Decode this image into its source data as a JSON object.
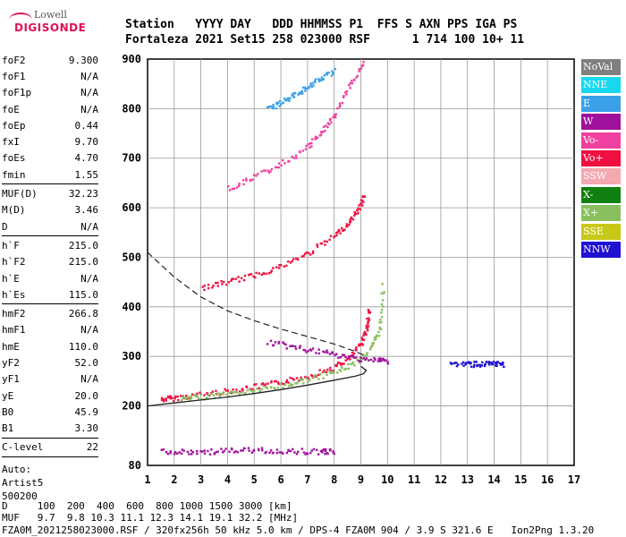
{
  "logo": {
    "line1": "Lowell",
    "line2": "DIGISONDE"
  },
  "header": {
    "line1": "Station   YYYY DAY   DDD HHMMSS P1  FFS S AXN PPS IGA PS",
    "line2": "Fortaleza 2021 Set15 258 023000 RSF      1 714 100 10+ 11"
  },
  "params": [
    [
      {
        "k": "foF2",
        "v": "9.300"
      },
      {
        "k": "foF1",
        "v": "N/A"
      },
      {
        "k": "foF1p",
        "v": "N/A"
      },
      {
        "k": "foE",
        "v": "N/A"
      },
      {
        "k": "foEp",
        "v": "0.44"
      },
      {
        "k": "fxI",
        "v": "9.70"
      },
      {
        "k": "foEs",
        "v": "4.70"
      },
      {
        "k": "fmin",
        "v": "1.55"
      }
    ],
    [
      {
        "k": "MUF(D)",
        "v": "32.23"
      },
      {
        "k": "M(D)",
        "v": "3.46"
      },
      {
        "k": "D",
        "v": "N/A"
      }
    ],
    [
      {
        "k": "h`F",
        "v": "215.0"
      },
      {
        "k": "h`F2",
        "v": "215.0"
      },
      {
        "k": "h`E",
        "v": "N/A"
      },
      {
        "k": "h`Es",
        "v": "115.0"
      }
    ],
    [
      {
        "k": "hmF2",
        "v": "266.8"
      },
      {
        "k": "hmF1",
        "v": "N/A"
      },
      {
        "k": "hmE",
        "v": "110.0"
      },
      {
        "k": "yF2",
        "v": "52.0"
      },
      {
        "k": "yF1",
        "v": "N/A"
      },
      {
        "k": "yE",
        "v": "20.0"
      },
      {
        "k": "B0",
        "v": "45.9"
      },
      {
        "k": "B1",
        "v": "3.30"
      }
    ],
    [
      {
        "k": "C-level",
        "v": "22"
      }
    ]
  ],
  "auto": {
    "line1": "Auto:",
    "line2": "Artist5",
    "line3": "500200"
  },
  "legend": [
    {
      "label": "NoVal",
      "color": "#808080",
      "text": "#ffffff"
    },
    {
      "label": "NNE",
      "color": "#18d8f0",
      "text": "#ffffff"
    },
    {
      "label": "E",
      "color": "#3aa0e8",
      "text": "#ffffff"
    },
    {
      "label": "W",
      "color": "#a0109c",
      "text": "#ffffff"
    },
    {
      "label": "Vo-",
      "color": "#f040a0",
      "text": "#ffffff"
    },
    {
      "label": "Vo+",
      "color": "#f01040",
      "text": "#ffffff"
    },
    {
      "label": "SSW",
      "color": "#f4a8b0",
      "text": "#ffffff"
    },
    {
      "label": "X-",
      "color": "#108010",
      "text": "#ffffff"
    },
    {
      "label": "X+",
      "color": "#88c060",
      "text": "#ffffff"
    },
    {
      "label": "SSE",
      "color": "#c8c818",
      "text": "#ffffff"
    },
    {
      "label": "NNW",
      "color": "#2010d0",
      "text": "#ffffff"
    }
  ],
  "footer": {
    "line1": "D     100  200  400  600  800 1000 1500 3000 [km]",
    "line2": "MUF   9.7  9.8 10.3 11.1 12.3 14.1 19.1 32.2 [MHz]",
    "line3": "FZA0M_2021258023000.RSF / 320fx256h 50 kHz 5.0 km / DPS-4 FZA0M 904 / 3.9 S 321.6 E   Ion2Png 1.3.20"
  },
  "chart_data": {
    "type": "scatter",
    "title": "",
    "xlabel": "",
    "ylabel": "",
    "xlim": [
      1,
      17
    ],
    "ylim": [
      80,
      900
    ],
    "x_ticks": [
      1,
      2,
      3,
      4,
      5,
      6,
      7,
      8,
      9,
      10,
      11,
      12,
      13,
      14,
      15,
      16,
      17
    ],
    "y_ticks": [
      80,
      200,
      300,
      400,
      500,
      600,
      700,
      800,
      900
    ],
    "grid": true,
    "series": [
      {
        "name": "Vo+",
        "color": "#f01040",
        "trace": "first-hop F2 trace",
        "points": [
          [
            1.5,
            215
          ],
          [
            2,
            218
          ],
          [
            3,
            225
          ],
          [
            4,
            232
          ],
          [
            5,
            240
          ],
          [
            6,
            250
          ],
          [
            7,
            262
          ],
          [
            8,
            280
          ],
          [
            8.6,
            300
          ],
          [
            9.0,
            330
          ],
          [
            9.2,
            360
          ],
          [
            9.3,
            400
          ]
        ]
      },
      {
        "name": "X+",
        "color": "#88c060",
        "trace": "first-hop X trace",
        "points": [
          [
            2.2,
            215
          ],
          [
            3,
            220
          ],
          [
            4,
            226
          ],
          [
            5,
            233
          ],
          [
            6,
            242
          ],
          [
            7,
            255
          ],
          [
            8,
            270
          ],
          [
            8.8,
            290
          ],
          [
            9.4,
            320
          ],
          [
            9.7,
            360
          ],
          [
            9.8,
            450
          ]
        ]
      },
      {
        "name": "Vo+",
        "color": "#f01040",
        "trace": "second-hop trace",
        "points": [
          [
            3.0,
            440
          ],
          [
            4,
            452
          ],
          [
            5,
            466
          ],
          [
            6,
            484
          ],
          [
            7,
            510
          ],
          [
            8,
            545
          ],
          [
            8.5,
            570
          ],
          [
            8.9,
            600
          ],
          [
            9.1,
            630
          ]
        ]
      },
      {
        "name": "Vo-",
        "color": "#f040a0",
        "trace": "third-hop trace",
        "points": [
          [
            4.0,
            640
          ],
          [
            5,
            665
          ],
          [
            6,
            690
          ],
          [
            7,
            725
          ],
          [
            7.5,
            755
          ],
          [
            8,
            790
          ],
          [
            8.6,
            850
          ],
          [
            9.1,
            900
          ]
        ]
      },
      {
        "name": "E",
        "color": "#3aa0e8",
        "trace": "high echoes",
        "points": [
          [
            5.5,
            800
          ],
          [
            6,
            815
          ],
          [
            6.5,
            830
          ],
          [
            7,
            846
          ],
          [
            7.5,
            862
          ],
          [
            8,
            880
          ]
        ]
      },
      {
        "name": "W",
        "color": "#a0109c",
        "trace": "spread F",
        "points": [
          [
            5.5,
            330
          ],
          [
            6.5,
            320
          ],
          [
            7.5,
            310
          ],
          [
            8.5,
            300
          ],
          [
            9.5,
            295
          ],
          [
            10,
            292
          ]
        ]
      },
      {
        "name": "NNW",
        "color": "#2010d0",
        "trace": "oblique echoes",
        "points": [
          [
            12.3,
            287
          ],
          [
            13,
            286
          ],
          [
            13.5,
            286
          ],
          [
            14,
            286
          ],
          [
            14.3,
            286
          ]
        ]
      },
      {
        "name": "W",
        "color": "#a0109c",
        "trace": "sporadic E",
        "points": [
          [
            1.5,
            110
          ],
          [
            2.5,
            108
          ],
          [
            3.5,
            110
          ],
          [
            4.5,
            112
          ],
          [
            5.5,
            112
          ],
          [
            6.5,
            110
          ],
          [
            7.5,
            110
          ],
          [
            8.0,
            110
          ]
        ]
      }
    ],
    "profile_curve": [
      [
        1.0,
        200
      ],
      [
        2,
        206
      ],
      [
        3,
        212
      ],
      [
        4,
        218
      ],
      [
        5,
        225
      ],
      [
        6,
        233
      ],
      [
        7,
        242
      ],
      [
        8,
        252
      ],
      [
        8.8,
        260
      ],
      [
        9.1,
        265
      ],
      [
        9.2,
        272
      ],
      [
        9.0,
        280
      ]
    ],
    "dashed_curve": [
      [
        1.0,
        510
      ],
      [
        2,
        460
      ],
      [
        3,
        420
      ],
      [
        4,
        392
      ],
      [
        5,
        372
      ],
      [
        6,
        355
      ],
      [
        7,
        340
      ],
      [
        8,
        325
      ],
      [
        8.8,
        310
      ],
      [
        9.2,
        300
      ]
    ]
  }
}
